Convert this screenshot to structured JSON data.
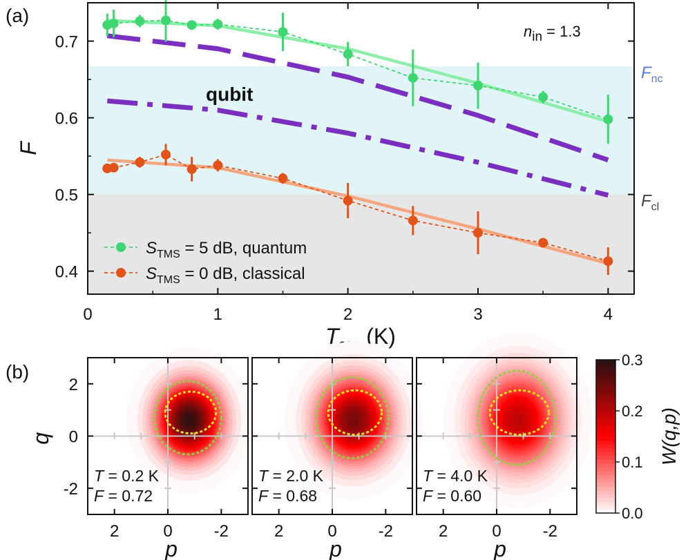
{
  "figure": {
    "panel_a_label": "(a)",
    "panel_b_label": "(b)"
  },
  "chart_data": [
    {
      "type": "line",
      "panel": "(a)",
      "xlabel_main": "T",
      "xlabel_sub": "cen",
      "xlabel_unit": " (K)",
      "ylabel": "F",
      "xlim": [
        0,
        4.2
      ],
      "ylim": [
        0.37,
        0.75
      ],
      "xticks": [
        0,
        1,
        2,
        3,
        4
      ],
      "yticks": [
        0.4,
        0.5,
        0.6,
        0.7
      ],
      "annotation": {
        "main": "n",
        "sub": "in",
        "rest": " = 1.3"
      },
      "regions": [
        {
          "name": "qubit",
          "from": 0.5,
          "to": 0.667,
          "color": "#e1f5f8"
        },
        {
          "name": "",
          "from": 0.37,
          "to": 0.5,
          "color": "#e6e6e6"
        }
      ],
      "thresholds": [
        {
          "main": "F",
          "sub": "nc",
          "value": 0.667,
          "color": "#5a78dc"
        },
        {
          "main": "F",
          "sub": "cl",
          "value": 0.5,
          "color": "#444444"
        }
      ],
      "region_label": {
        "text": "qubit",
        "color": "#8230b8"
      },
      "legend_placement": "bottom-left",
      "series": [
        {
          "legend_main": "S",
          "legend_sub": "TMS",
          "legend_rest": " = 5 dB, quantum",
          "color": "#3ed670",
          "fit_color": "#8ceea8",
          "x": [
            0.15,
            0.2,
            0.4,
            0.6,
            0.8,
            1.0,
            1.5,
            2.0,
            2.5,
            3.0,
            3.5,
            4.0
          ],
          "y": [
            0.721,
            0.723,
            0.726,
            0.727,
            0.721,
            0.722,
            0.712,
            0.683,
            0.652,
            0.642,
            0.627,
            0.598
          ],
          "err": [
            0.015,
            0.018,
            0.008,
            0.028,
            0.006,
            0.007,
            0.025,
            0.016,
            0.037,
            0.03,
            0.008,
            0.032
          ],
          "fit_x": [
            0.15,
            1.0,
            2.0,
            3.0,
            4.0
          ],
          "fit_y": [
            0.727,
            0.72,
            0.69,
            0.645,
            0.595
          ]
        },
        {
          "legend_main": "S",
          "legend_sub": "TMS",
          "legend_rest": " = 0 dB, classical",
          "color": "#e2531a",
          "fit_color": "#f6a67c",
          "x": [
            0.15,
            0.2,
            0.4,
            0.6,
            0.8,
            1.0,
            1.5,
            2.0,
            2.5,
            3.0,
            3.5,
            4.0
          ],
          "y": [
            0.534,
            0.535,
            0.542,
            0.552,
            0.533,
            0.538,
            0.521,
            0.492,
            0.466,
            0.45,
            0.437,
            0.413
          ],
          "err": [
            0.006,
            0.006,
            0.007,
            0.014,
            0.016,
            0.008,
            0.007,
            0.023,
            0.019,
            0.028,
            0.006,
            0.018
          ],
          "fit_x": [
            0.15,
            1.0,
            2.0,
            3.0,
            4.0
          ],
          "fit_y": [
            0.545,
            0.535,
            0.498,
            0.455,
            0.41
          ]
        }
      ],
      "theory_curves": [
        {
          "style": "dash",
          "color": "#7a2fc0",
          "x": [
            0.15,
            1.0,
            2.0,
            3.0,
            4.0
          ],
          "y": [
            0.707,
            0.69,
            0.653,
            0.603,
            0.545
          ]
        },
        {
          "style": "dash-dot",
          "color": "#7a2fc0",
          "x": [
            0.15,
            1.0,
            2.0,
            3.0,
            4.0
          ],
          "y": [
            0.622,
            0.61,
            0.58,
            0.542,
            0.499
          ]
        }
      ]
    },
    {
      "type": "heatmap",
      "panel": "(b)",
      "xlabel": "p",
      "ylabel": "q",
      "xlim": [
        3,
        -3
      ],
      "ylim": [
        -3,
        3
      ],
      "xticks": [
        2,
        0,
        -2
      ],
      "xtick_labels": [
        "2",
        "0",
        "-2"
      ],
      "yticks": [
        2,
        0,
        -2
      ],
      "ytick_labels": [
        "2",
        "0",
        "-2"
      ],
      "colorbar": {
        "label": "W(q,p)",
        "range": [
          0.0,
          0.3
        ],
        "ticks": [
          0.0,
          0.1,
          0.2,
          0.3
        ],
        "tick_labels": [
          "0.0",
          "0.1",
          "0.2",
          "0.3"
        ]
      },
      "panels": [
        {
          "T_main": "T",
          "T_rest": " = 0.2 K",
          "F_main": "F",
          "F_rest": " = 0.72",
          "center_p": -0.8,
          "center_q": 0.6,
          "sigma_p": 0.8,
          "sigma_q": 0.95,
          "peak": 0.3,
          "green_ellipse": {
            "p": -0.75,
            "q": 0.7,
            "rp": 1.25,
            "rq": 1.4
          },
          "yellow_ellipse": {
            "p": -0.85,
            "q": 0.9,
            "rp": 0.95,
            "rq": 0.8
          }
        },
        {
          "T_main": "T",
          "T_rest": " = 2.0 K",
          "F_main": "F",
          "F_rest": " = 0.68",
          "center_p": -0.8,
          "center_q": 0.6,
          "sigma_p": 0.9,
          "sigma_q": 1.05,
          "peak": 0.25,
          "green_ellipse": {
            "p": -0.75,
            "q": 0.7,
            "rp": 1.35,
            "rq": 1.55
          },
          "yellow_ellipse": {
            "p": -0.85,
            "q": 0.9,
            "rp": 1.0,
            "rq": 0.85
          }
        },
        {
          "T_main": "T",
          "T_rest": " = 4.0 K",
          "F_main": "F",
          "F_rest": " = 0.60",
          "center_p": -0.8,
          "center_q": 0.6,
          "sigma_p": 1.0,
          "sigma_q": 1.2,
          "peak": 0.2,
          "green_ellipse": {
            "p": -0.75,
            "q": 0.7,
            "rp": 1.45,
            "rq": 1.8
          },
          "yellow_ellipse": {
            "p": -0.85,
            "q": 0.9,
            "rp": 1.1,
            "rq": 0.85
          }
        }
      ]
    }
  ]
}
